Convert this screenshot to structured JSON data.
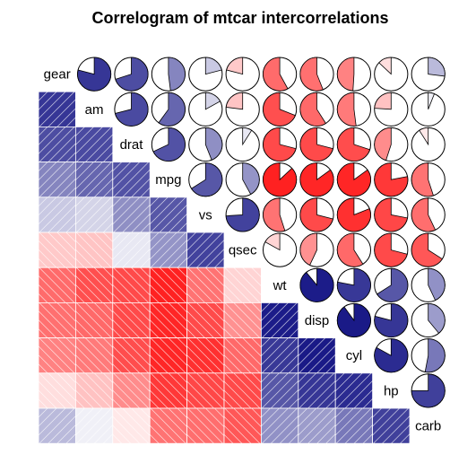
{
  "chart_data": {
    "type": "heatmap",
    "title": "Correlogram of mtcar intercorrelations",
    "variables": [
      "gear",
      "am",
      "drat",
      "mpg",
      "vs",
      "qsec",
      "wt",
      "disp",
      "cyl",
      "hp",
      "carb"
    ],
    "lower_panel": "shade",
    "upper_panel": "pie",
    "color_scale": {
      "negative": "#d40000",
      "positive": "#00007a",
      "zero": "#ffffff"
    },
    "correlation_matrix": [
      [
        1.0,
        0.79,
        0.7,
        0.48,
        0.21,
        -0.21,
        -0.58,
        -0.56,
        -0.49,
        -0.13,
        0.27
      ],
      [
        0.79,
        1.0,
        0.71,
        0.6,
        0.17,
        -0.23,
        -0.69,
        -0.59,
        -0.52,
        -0.24,
        0.06
      ],
      [
        0.7,
        0.71,
        1.0,
        0.68,
        0.44,
        0.09,
        -0.71,
        -0.71,
        -0.7,
        -0.45,
        -0.09
      ],
      [
        0.48,
        0.6,
        0.68,
        1.0,
        0.66,
        0.42,
        -0.87,
        -0.85,
        -0.85,
        -0.78,
        -0.55
      ],
      [
        0.21,
        0.17,
        0.44,
        0.66,
        1.0,
        0.74,
        -0.55,
        -0.71,
        -0.81,
        -0.72,
        -0.57
      ],
      [
        -0.21,
        -0.23,
        0.09,
        0.42,
        0.74,
        1.0,
        -0.17,
        -0.43,
        -0.59,
        -0.71,
        -0.66
      ],
      [
        -0.58,
        -0.69,
        -0.71,
        -0.87,
        -0.55,
        -0.17,
        1.0,
        0.89,
        0.78,
        0.66,
        0.43
      ],
      [
        -0.56,
        -0.59,
        -0.71,
        -0.85,
        -0.71,
        -0.43,
        0.89,
        1.0,
        0.9,
        0.79,
        0.39
      ],
      [
        -0.49,
        -0.52,
        -0.7,
        -0.85,
        -0.81,
        -0.59,
        0.78,
        0.9,
        1.0,
        0.83,
        0.53
      ],
      [
        -0.13,
        -0.24,
        -0.45,
        -0.78,
        -0.72,
        -0.71,
        0.66,
        0.79,
        0.83,
        1.0,
        0.75
      ],
      [
        0.27,
        0.06,
        -0.09,
        -0.55,
        -0.57,
        -0.66,
        0.43,
        0.39,
        0.53,
        0.75,
        1.0
      ]
    ]
  }
}
